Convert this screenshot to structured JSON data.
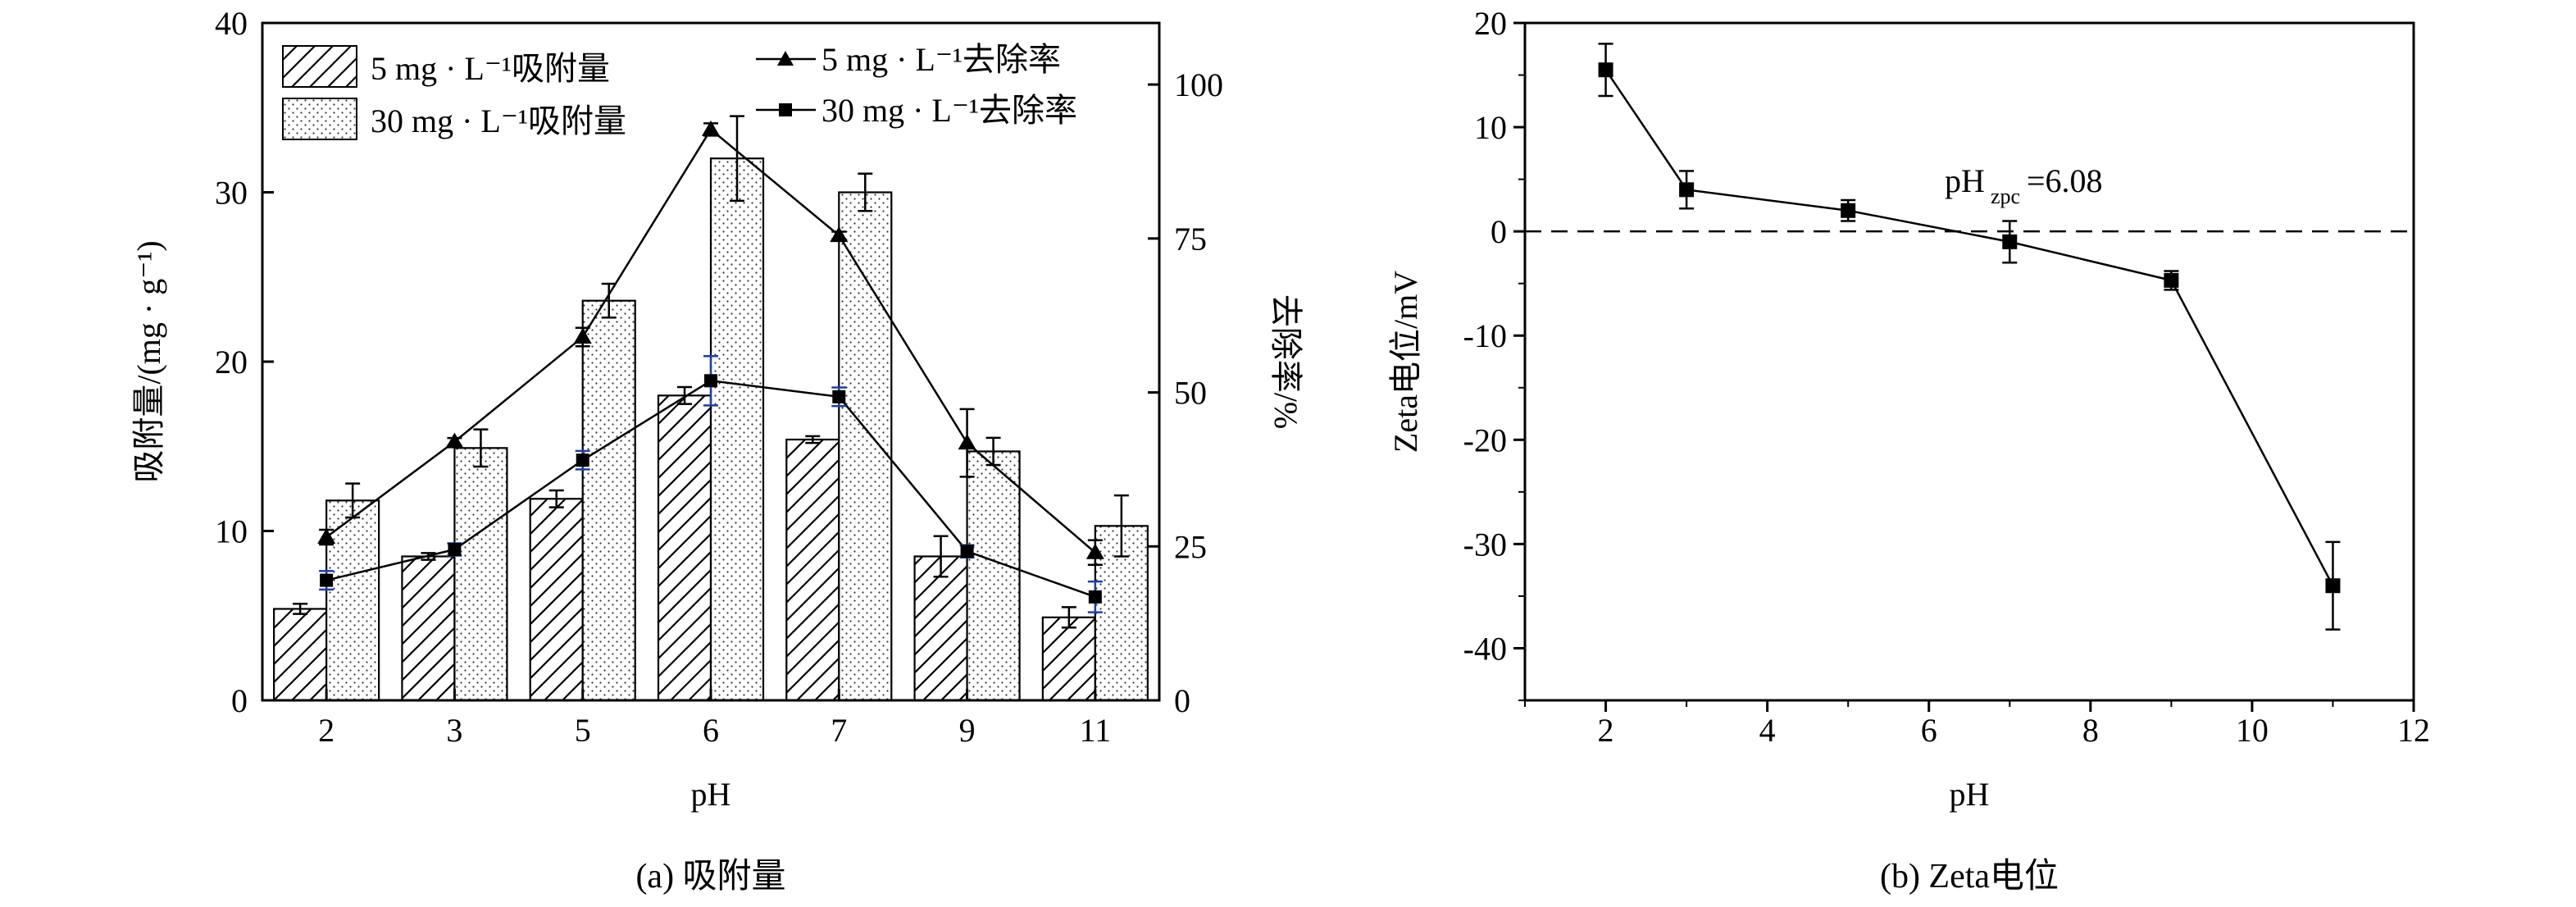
{
  "chart_data": [
    {
      "type": "bar+line",
      "title": "",
      "caption": "(a) 吸附量",
      "xlabel": "pH",
      "ylabel_left": "吸附量/(mg · g⁻¹)",
      "ylabel_right": "去除率/%",
      "ylim_left": [
        0,
        40
      ],
      "ylim_right": [
        0,
        110
      ],
      "yticks_left": [
        "0",
        "10",
        "20",
        "30",
        "40"
      ],
      "yticks_right": [
        "0",
        "25",
        "50",
        "75",
        "100"
      ],
      "categories": [
        "2",
        "3",
        "5",
        "6",
        "7",
        "9",
        "11"
      ],
      "bars": [
        {
          "name": "5 mg · L⁻¹吸附量",
          "pattern": "hatch",
          "values": [
            5.4,
            8.5,
            11.9,
            18.0,
            15.4,
            8.5,
            4.9
          ],
          "errors": [
            0.3,
            0.2,
            0.5,
            0.5,
            0.2,
            1.2,
            0.6
          ]
        },
        {
          "name": "30 mg · L⁻¹吸附量",
          "pattern": "dots",
          "values": [
            11.8,
            14.9,
            23.6,
            32.0,
            30.0,
            14.7,
            10.3
          ],
          "errors": [
            1.0,
            1.1,
            1.0,
            2.5,
            1.1,
            0.8,
            1.8
          ]
        }
      ],
      "lines": [
        {
          "name": "5 mg · L⁻¹去除率",
          "marker": "triangle",
          "values": [
            26.5,
            42.0,
            59.0,
            92.7,
            75.5,
            41.8,
            24.0
          ],
          "errors": [
            1.2,
            0.6,
            1.5,
            1.0,
            0.6,
            5.5,
            2.0
          ]
        },
        {
          "name": "30 mg · L⁻¹去除率",
          "marker": "square",
          "values": [
            19.5,
            24.5,
            39.0,
            51.9,
            49.3,
            24.2,
            16.8
          ],
          "errors": [
            1.5,
            1.0,
            1.5,
            4.0,
            1.5,
            1.0,
            2.5
          ]
        }
      ]
    },
    {
      "type": "line",
      "title": "",
      "caption": "(b) Zeta电位",
      "xlabel": "pH",
      "ylabel": "Zeta电位/mV",
      "xlim": [
        1,
        12
      ],
      "ylim": [
        -45,
        20
      ],
      "xticks": [
        "2",
        "4",
        "6",
        "8",
        "10",
        "12"
      ],
      "yticks": [
        "20",
        "10",
        "0",
        "-10",
        "-20",
        "-30",
        "-40"
      ],
      "annotation_main": "pH",
      "annotation_sub": "zpc",
      "annotation_value": "=6.08",
      "series": [
        {
          "x": [
            2,
            3,
            5,
            7,
            9,
            11
          ],
          "y": [
            15.5,
            4.0,
            2.0,
            -1.0,
            -4.7,
            -34.0
          ],
          "errors": [
            2.5,
            1.8,
            1.0,
            2.0,
            0.9,
            4.2
          ]
        }
      ]
    }
  ]
}
